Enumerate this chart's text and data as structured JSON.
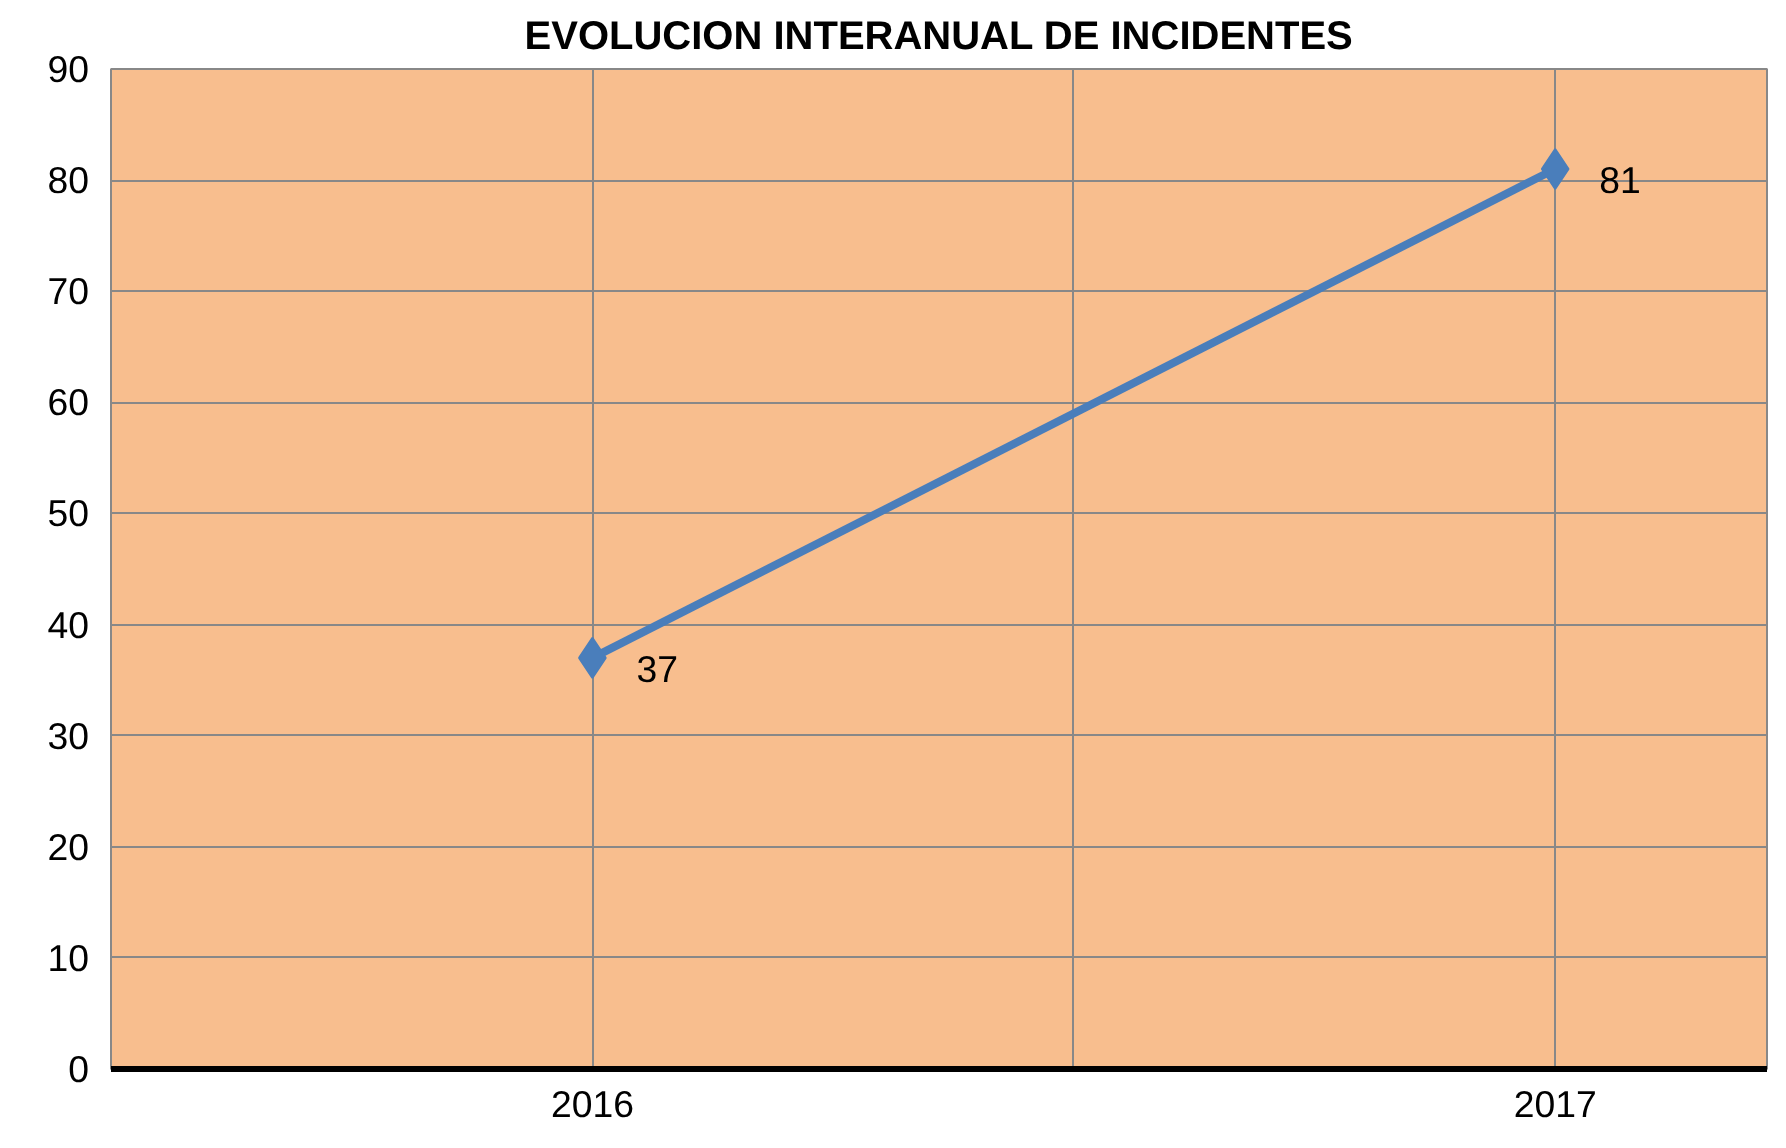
{
  "chart_data": {
    "type": "line",
    "title": "EVOLUCION INTERANUAL DE INCIDENTES",
    "categories": [
      "2016",
      "2017"
    ],
    "series": [
      {
        "color": "#4a7ebb",
        "values": [
          37,
          81
        ]
      }
    ],
    "ylim": [
      0,
      90
    ],
    "yticks": [
      0,
      10,
      20,
      30,
      40,
      50,
      60,
      70,
      80,
      90
    ],
    "grid": true,
    "marker": "diamond",
    "line_style": "solid",
    "data_labels": true
  }
}
